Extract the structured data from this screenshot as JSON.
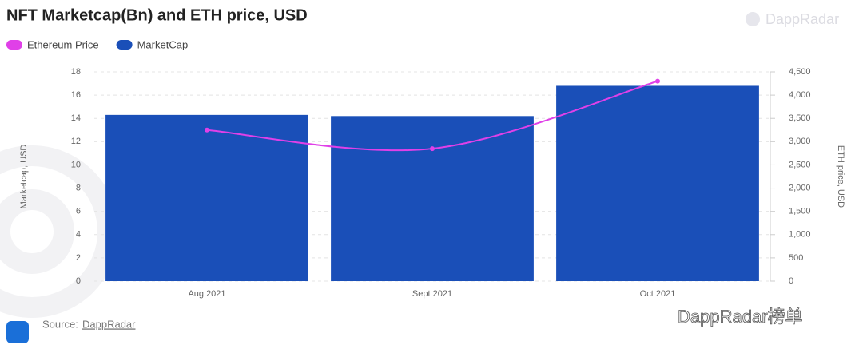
{
  "chart_data": {
    "type": "bar",
    "title": "NFT Marketcap(Bn) and ETH price, USD",
    "watermark": "DappRadar",
    "source_label": "Source:",
    "source_link": "DappRadar",
    "corner_mark": "DappRadar榜单",
    "categories": [
      "Aug 2021",
      "Sept 2021",
      "Oct 2021"
    ],
    "series": [
      {
        "name": "Ethereum Price",
        "type": "line",
        "color": "#e040e8",
        "axis": "y2",
        "values": [
          3250,
          2850,
          4300
        ]
      },
      {
        "name": "MarketCap",
        "type": "bar",
        "color": "#1a4fb8",
        "values": [
          14.3,
          14.2,
          16.8
        ]
      }
    ],
    "ylabel": "Marketcap, USD",
    "y2label": "ETH price, USD",
    "ylim": [
      0,
      18
    ],
    "yticks": [
      0,
      2,
      4,
      6,
      8,
      10,
      12,
      14,
      16,
      18
    ],
    "y2lim": [
      0,
      4500
    ],
    "y2ticks": [
      0,
      500,
      {
        "value": 1000,
        "label": "1,000"
      },
      {
        "value": 1500,
        "label": "1,500"
      },
      {
        "value": 2000,
        "label": "2,000"
      },
      {
        "value": 2500,
        "label": "2,500"
      },
      {
        "value": 3000,
        "label": "3,000"
      },
      {
        "value": 3500,
        "label": "3,500"
      },
      {
        "value": 4000,
        "label": "4,000"
      },
      {
        "value": 4500,
        "label": "4,500"
      }
    ],
    "grid": true,
    "legend": "top-left"
  }
}
